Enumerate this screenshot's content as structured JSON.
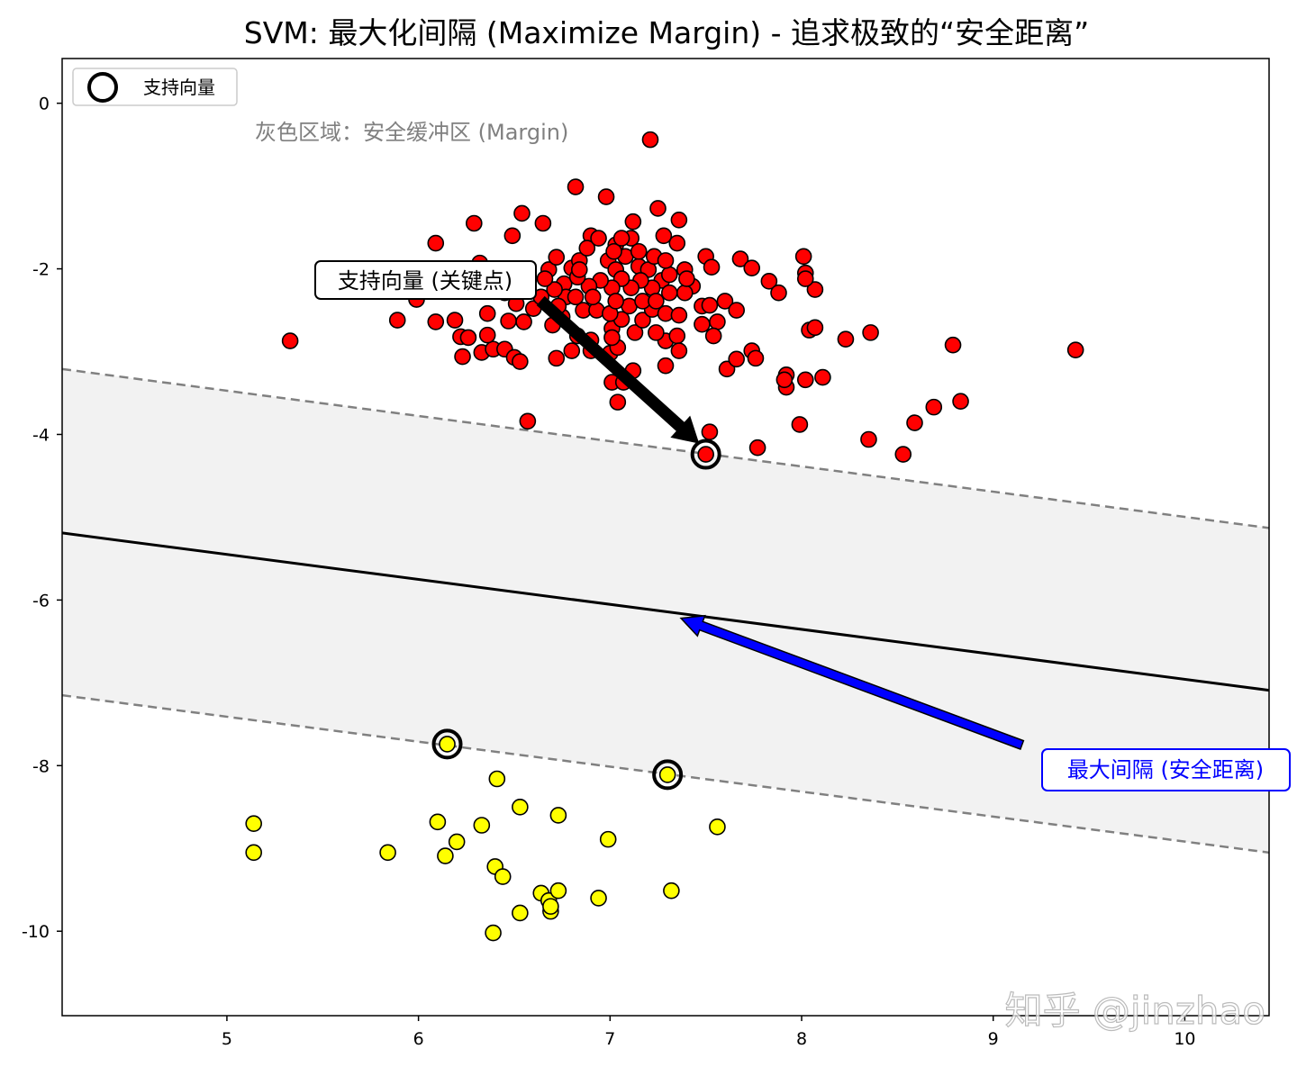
{
  "chart_data": {
    "type": "scatter",
    "title": "SVM: 最大化间隔 (Maximize Margin) - 追求极致的“安全距离”",
    "xlabel": "",
    "ylabel": "",
    "xlim": [
      4.14,
      10.44
    ],
    "ylim": [
      -11.02,
      0.54
    ],
    "x_ticks": [
      5,
      6,
      7,
      8,
      9,
      10
    ],
    "y_ticks": [
      0,
      -2,
      -4,
      -6,
      -8,
      -10
    ],
    "y_tick_labels": [
      "0",
      "-2",
      "-4",
      "-6",
      "-8",
      "-10"
    ],
    "grid": false,
    "colors": {
      "class_a": "#ff0000",
      "class_b": "#ffff00",
      "margin_fill": "#f2f2f2",
      "margin_line": "#808080",
      "boundary": "#000000",
      "blue_arrow": "#0000ff"
    },
    "series": [
      {
        "color": "#ff0000",
        "points": [
          [
            7.21,
            -0.44
          ],
          [
            6.82,
            -1.01
          ],
          [
            6.98,
            -1.13
          ],
          [
            6.54,
            -1.33
          ],
          [
            6.29,
            -1.45
          ],
          [
            6.65,
            -1.45
          ],
          [
            7.25,
            -1.27
          ],
          [
            7.36,
            -1.41
          ],
          [
            7.12,
            -1.43
          ],
          [
            6.49,
            -1.6
          ],
          [
            6.09,
            -1.69
          ],
          [
            6.9,
            -1.6
          ],
          [
            7.03,
            -1.71
          ],
          [
            7.28,
            -1.6
          ],
          [
            7.35,
            -1.69
          ],
          [
            7.5,
            -1.85
          ],
          [
            7.53,
            -1.98
          ],
          [
            7.68,
            -1.88
          ],
          [
            7.74,
            -1.99
          ],
          [
            8.01,
            -1.85
          ],
          [
            8.02,
            -2.05
          ],
          [
            7.83,
            -2.15
          ],
          [
            7.88,
            -2.29
          ],
          [
            8.07,
            -2.25
          ],
          [
            8.02,
            -2.12
          ],
          [
            5.33,
            -2.87
          ],
          [
            5.89,
            -2.62
          ],
          [
            6.09,
            -2.64
          ],
          [
            5.99,
            -2.37
          ],
          [
            6.19,
            -2.62
          ],
          [
            6.22,
            -2.82
          ],
          [
            6.26,
            -2.83
          ],
          [
            6.23,
            -3.06
          ],
          [
            6.33,
            -3.01
          ],
          [
            6.39,
            -2.97
          ],
          [
            6.45,
            -2.97
          ],
          [
            6.5,
            -3.07
          ],
          [
            6.53,
            -3.12
          ],
          [
            6.36,
            -2.8
          ],
          [
            6.36,
            -2.54
          ],
          [
            6.47,
            -2.63
          ],
          [
            6.55,
            -2.64
          ],
          [
            6.6,
            -2.48
          ],
          [
            6.51,
            -2.42
          ],
          [
            6.64,
            -2.34
          ],
          [
            6.57,
            -3.84
          ],
          [
            6.7,
            -2.68
          ],
          [
            6.75,
            -2.58
          ],
          [
            6.72,
            -3.08
          ],
          [
            6.8,
            -2.99
          ],
          [
            6.83,
            -2.81
          ],
          [
            6.9,
            -2.86
          ],
          [
            6.9,
            -2.99
          ],
          [
            7.0,
            -3.02
          ],
          [
            7.01,
            -2.72
          ],
          [
            7.04,
            -2.95
          ],
          [
            7.01,
            -3.37
          ],
          [
            7.04,
            -3.61
          ],
          [
            7.07,
            -3.37
          ],
          [
            7.12,
            -3.23
          ],
          [
            7.06,
            -2.61
          ],
          [
            7.13,
            -2.77
          ],
          [
            7.17,
            -2.62
          ],
          [
            7.22,
            -2.49
          ],
          [
            7.29,
            -2.54
          ],
          [
            7.29,
            -2.87
          ],
          [
            7.35,
            -2.81
          ],
          [
            7.36,
            -2.99
          ],
          [
            7.29,
            -3.17
          ],
          [
            7.48,
            -2.67
          ],
          [
            7.48,
            -2.45
          ],
          [
            7.52,
            -3.97
          ],
          [
            7.56,
            -2.64
          ],
          [
            7.54,
            -2.81
          ],
          [
            7.52,
            -2.44
          ],
          [
            7.6,
            -2.39
          ],
          [
            7.66,
            -2.5
          ],
          [
            7.61,
            -3.21
          ],
          [
            7.66,
            -3.09
          ],
          [
            7.74,
            -2.99
          ],
          [
            7.76,
            -3.08
          ],
          [
            7.77,
            -4.16
          ],
          [
            7.92,
            -3.43
          ],
          [
            7.92,
            -3.28
          ],
          [
            7.91,
            -3.34
          ],
          [
            7.99,
            -3.88
          ],
          [
            8.02,
            -3.34
          ],
          [
            8.04,
            -2.74
          ],
          [
            8.07,
            -2.71
          ],
          [
            8.11,
            -3.31
          ],
          [
            8.23,
            -2.85
          ],
          [
            8.36,
            -2.77
          ],
          [
            8.35,
            -4.06
          ],
          [
            8.53,
            -4.24
          ],
          [
            8.59,
            -3.86
          ],
          [
            8.69,
            -3.67
          ],
          [
            8.79,
            -2.92
          ],
          [
            8.83,
            -3.6
          ],
          [
            9.43,
            -2.98
          ],
          [
            6.68,
            -2.01
          ],
          [
            6.72,
            -1.86
          ],
          [
            6.76,
            -2.18
          ],
          [
            6.8,
            -1.99
          ],
          [
            6.84,
            -1.9
          ],
          [
            6.88,
            -1.75
          ],
          [
            6.94,
            -1.63
          ],
          [
            6.99,
            -1.9
          ],
          [
            7.03,
            -2.01
          ],
          [
            7.08,
            -1.85
          ],
          [
            7.11,
            -1.63
          ],
          [
            7.15,
            -1.97
          ],
          [
            7.2,
            -2.01
          ],
          [
            7.23,
            -1.85
          ],
          [
            7.27,
            -2.14
          ],
          [
            7.31,
            -2.07
          ],
          [
            7.39,
            -2.01
          ],
          [
            7.43,
            -2.21
          ],
          [
            7.39,
            -2.29
          ],
          [
            7.31,
            -2.29
          ],
          [
            7.22,
            -2.23
          ],
          [
            7.16,
            -2.14
          ],
          [
            7.11,
            -2.23
          ],
          [
            7.06,
            -2.12
          ],
          [
            7.01,
            -2.23
          ],
          [
            6.95,
            -2.14
          ],
          [
            6.89,
            -2.21
          ],
          [
            6.83,
            -2.1
          ],
          [
            6.77,
            -2.34
          ],
          [
            6.71,
            -2.25
          ],
          [
            6.66,
            -2.12
          ],
          [
            6.86,
            -2.5
          ],
          [
            6.93,
            -2.5
          ],
          [
            7.0,
            -2.54
          ],
          [
            7.1,
            -2.45
          ],
          [
            7.17,
            -2.39
          ],
          [
            7.24,
            -2.39
          ],
          [
            7.36,
            -2.56
          ],
          [
            6.82,
            -2.34
          ],
          [
            6.91,
            -2.34
          ],
          [
            7.03,
            -2.39
          ],
          [
            7.15,
            -1.79
          ],
          [
            7.02,
            -1.79
          ],
          [
            6.84,
            -2.01
          ],
          [
            6.73,
            -2.45
          ],
          [
            6.52,
            -2.18
          ],
          [
            6.56,
            -2.01
          ],
          [
            6.45,
            -2.29
          ],
          [
            6.38,
            -2.12
          ],
          [
            6.32,
            -1.93
          ],
          [
            6.26,
            -2.01
          ],
          [
            7.01,
            -2.83
          ],
          [
            7.24,
            -2.77
          ],
          [
            7.06,
            -1.63
          ],
          [
            7.29,
            -1.9
          ],
          [
            7.4,
            -2.12
          ],
          [
            7.5,
            -4.24
          ]
        ]
      },
      {
        "color": "#ffff00",
        "points": [
          [
            5.14,
            -8.7
          ],
          [
            5.14,
            -9.05
          ],
          [
            5.84,
            -9.05
          ],
          [
            6.1,
            -8.68
          ],
          [
            6.14,
            -9.09
          ],
          [
            6.2,
            -8.92
          ],
          [
            6.33,
            -8.72
          ],
          [
            6.41,
            -8.16
          ],
          [
            6.4,
            -9.22
          ],
          [
            6.44,
            -9.34
          ],
          [
            6.53,
            -8.5
          ],
          [
            6.53,
            -9.78
          ],
          [
            6.39,
            -10.02
          ],
          [
            6.64,
            -9.54
          ],
          [
            6.68,
            -9.63
          ],
          [
            6.69,
            -9.76
          ],
          [
            6.69,
            -9.7
          ],
          [
            6.73,
            -9.51
          ],
          [
            6.73,
            -8.6
          ],
          [
            6.99,
            -8.89
          ],
          [
            6.94,
            -9.6
          ],
          [
            7.32,
            -9.51
          ],
          [
            7.56,
            -8.74
          ],
          [
            6.15,
            -7.74
          ],
          [
            7.3,
            -8.11
          ]
        ]
      }
    ],
    "support_vectors": [
      [
        7.5,
        -4.24
      ],
      [
        6.15,
        -7.74
      ],
      [
        7.3,
        -8.11
      ]
    ],
    "decision_boundary": [
      [
        4.14,
        -5.19
      ],
      [
        10.44,
        -7.09
      ]
    ],
    "margin_upper": [
      [
        4.14,
        -3.21
      ],
      [
        10.44,
        -5.13
      ]
    ],
    "margin_lower": [
      [
        4.14,
        -7.15
      ],
      [
        10.44,
        -9.05
      ]
    ],
    "legend": {
      "placement": "upper-left",
      "entries": [
        "支持向量"
      ]
    },
    "annotations": {
      "margin_note": "灰色区域：安全缓冲区 (Margin)",
      "support_label": "支持向量 (关键点)",
      "support_arrow": [
        [
          6.64,
          -2.39
        ],
        [
          7.46,
          -4.1
        ]
      ],
      "margin_label": "最大间隔 (安全距离)",
      "margin_arrow": [
        [
          9.15,
          -7.75
        ],
        [
          7.37,
          -6.22
        ]
      ]
    },
    "watermark": "知乎 @jinzhao"
  }
}
